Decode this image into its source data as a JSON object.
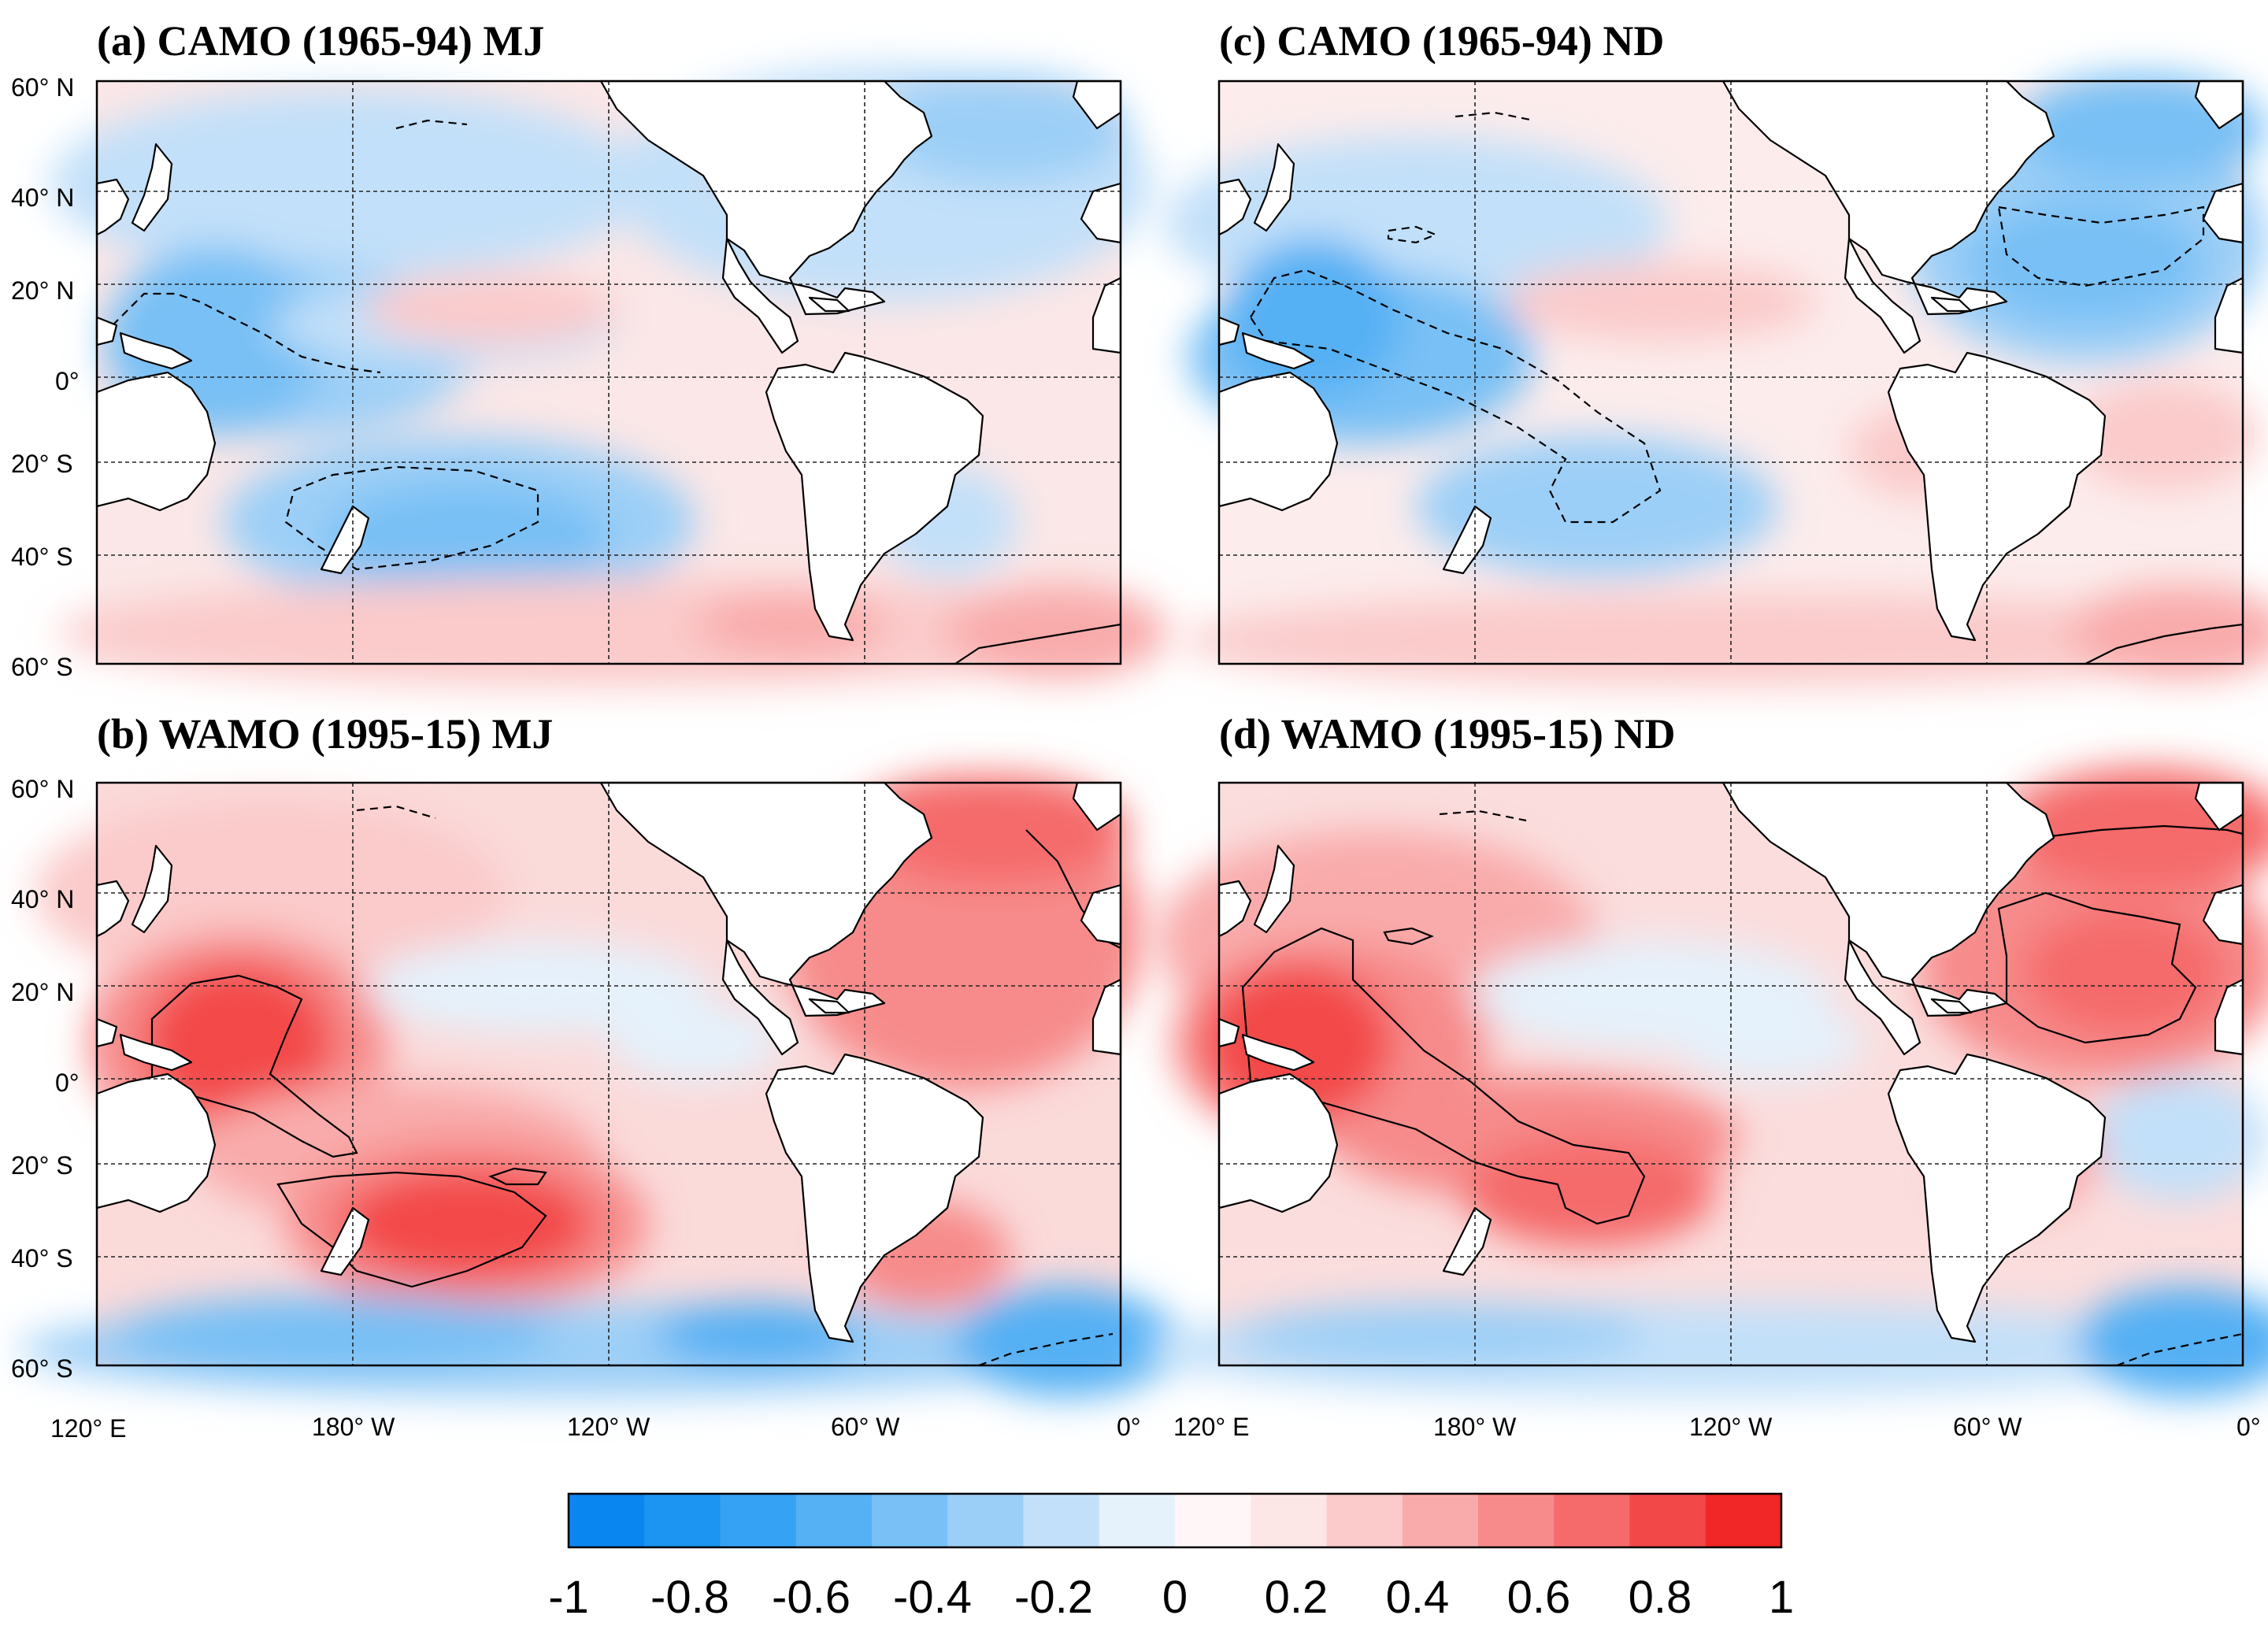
{
  "figure": {
    "panels": [
      {
        "id": "a",
        "title": "(a) CAMO (1965-94) MJ",
        "period": "CAMO (1965-94)",
        "season": "MJ"
      },
      {
        "id": "b",
        "title": "(b) WAMO (1995-15) MJ",
        "period": "WAMO (1995-15)",
        "season": "MJ"
      },
      {
        "id": "c",
        "title": "(c) CAMO (1965-94) ND",
        "period": "CAMO (1965-94)",
        "season": "ND"
      },
      {
        "id": "d",
        "title": "(d) WAMO (1995-15) ND",
        "period": "WAMO (1995-15)",
        "season": "ND"
      }
    ],
    "lat_labels": [
      "60° N",
      "40° N",
      "20° N",
      "0°",
      "20° S",
      "40° S",
      "60° S"
    ],
    "lon_labels": [
      "120° E",
      "180° W",
      "120° W",
      "60° W",
      "0°"
    ],
    "colorbar": {
      "ticks": [
        "-1",
        "-0.8",
        "-0.6",
        "-0.4",
        "-0.2",
        "0",
        "0.2",
        "0.4",
        "0.6",
        "0.8",
        "1"
      ],
      "range": [
        -1,
        1
      ],
      "colors": [
        "#0a86f0",
        "#1c94f2",
        "#36a2f3",
        "#55b0f4",
        "#78c0f5",
        "#9ccff7",
        "#c2e0f9",
        "#e5f1fb",
        "#fff7f7",
        "#fde6e6",
        "#fbcaca",
        "#f9abab",
        "#f78b8b",
        "#f56a6a",
        "#f34848",
        "#f12626"
      ]
    }
  }
}
